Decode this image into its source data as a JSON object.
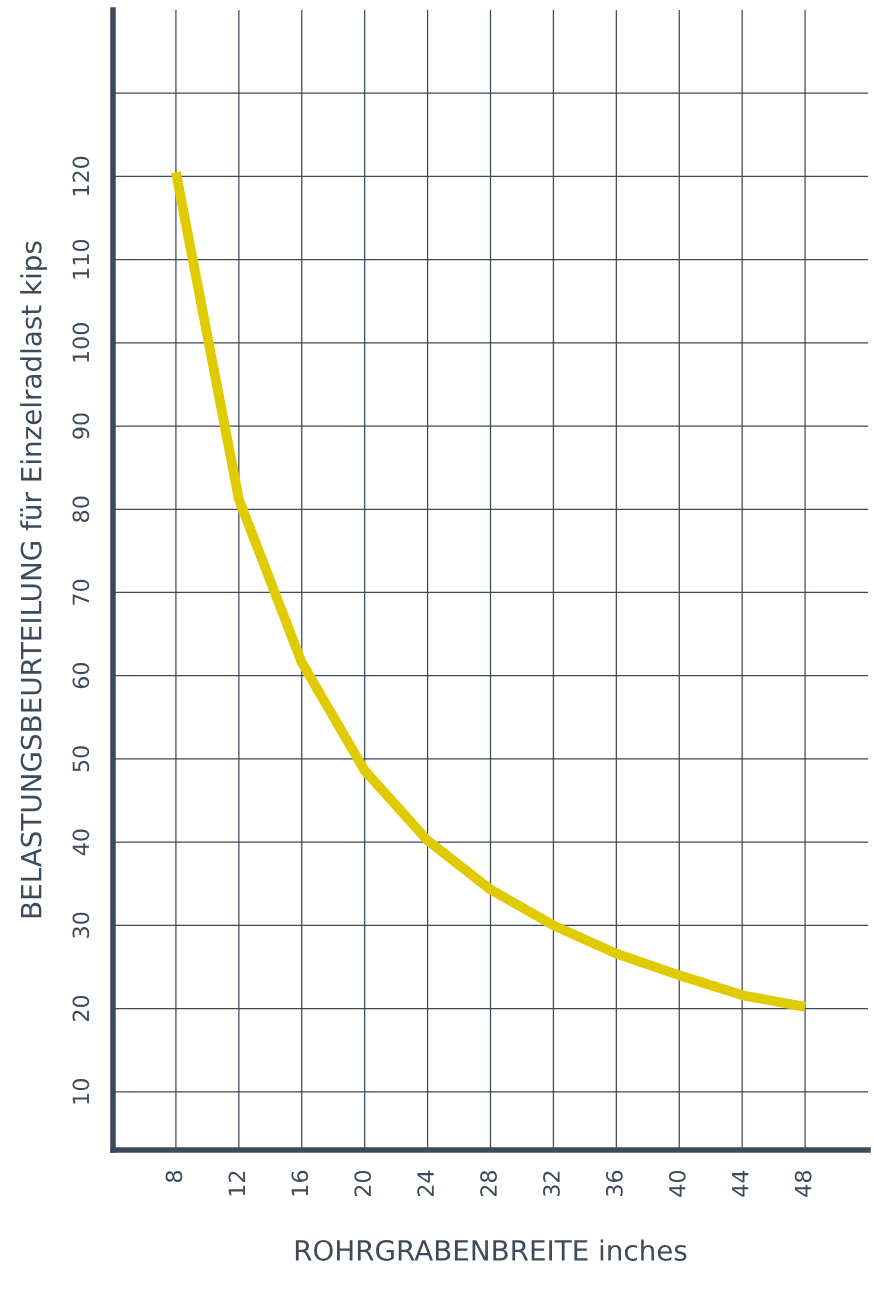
{
  "chart_data": {
    "type": "line",
    "xlabel": "ROHRGRABENBREITE inches",
    "ylabel": "BELASTUNGSBEURTEILUNG für Einzelradlast kips",
    "x": [
      8,
      12,
      16,
      20,
      24,
      28,
      32,
      36,
      40,
      44,
      48
    ],
    "series": [
      {
        "color": "#dfcb00",
        "values": [
          120.5,
          81.2,
          61.6,
          48.6,
          40.2,
          34.3,
          30,
          26.6,
          24,
          21.6,
          20.2
        ]
      }
    ],
    "xlim": [
      4,
      52
    ],
    "xticks": [
      8,
      12,
      16,
      20,
      24,
      28,
      32,
      36,
      40,
      44,
      48
    ],
    "ylim": [
      3,
      140
    ],
    "yticks": [
      10,
      20,
      30,
      40,
      50,
      60,
      70,
      80,
      90,
      100,
      110,
      120,
      {
        "value": 130,
        "label": null
      }
    ],
    "grid": true,
    "marker": "none",
    "line_style": "solid"
  }
}
